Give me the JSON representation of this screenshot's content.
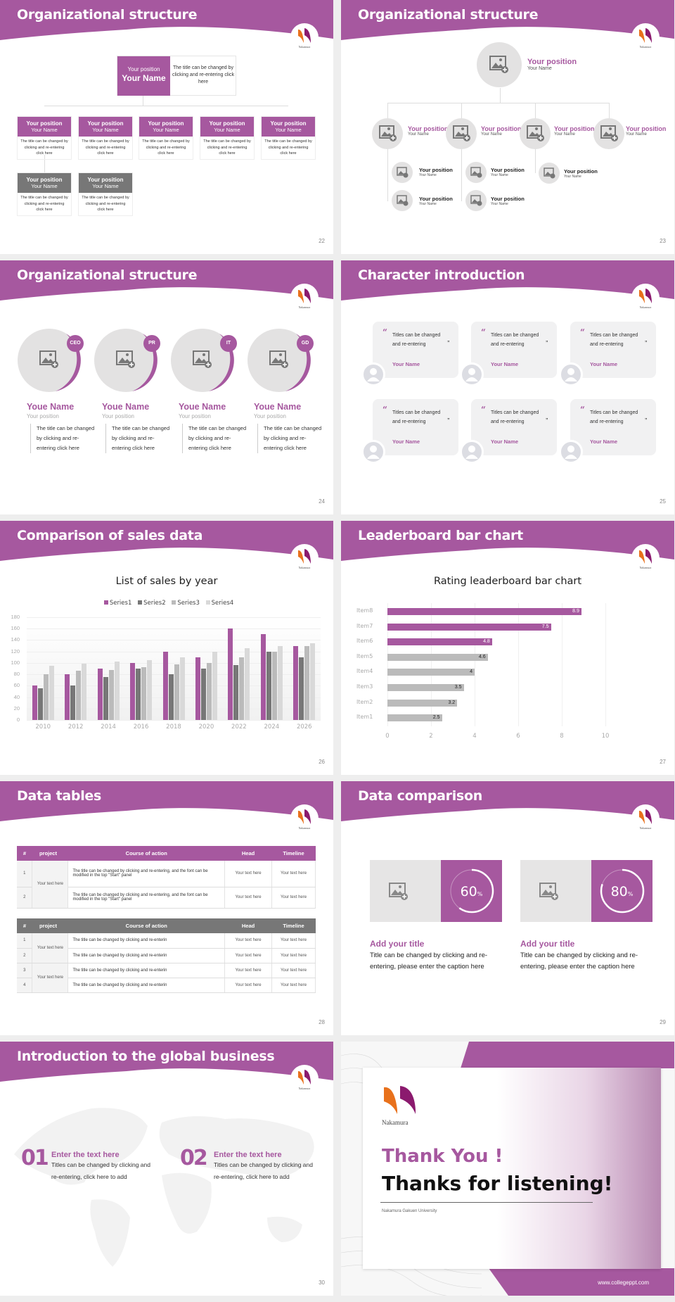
{
  "theme": {
    "accent": "#a6589f",
    "gray": "#777777",
    "light_gray": "#e3e2e2",
    "logo_orange": "#e8711c",
    "logo_purple": "#8b1a6e"
  },
  "logo": {
    "text": "Nakamura"
  },
  "slides": {
    "s22": {
      "title": "Organizational structure",
      "page": "22",
      "top": {
        "position": "Your position",
        "name": "Your Name",
        "desc": "The title can be changed by clicking and re-entering click here"
      },
      "boxes": [
        {
          "position": "Your position",
          "name": "Your Name",
          "desc": "The title can be changed by clicking and re-entering click here"
        },
        {
          "position": "Your position",
          "name": "Your Name",
          "desc": "The title can be changed by clicking and re-entering click here"
        },
        {
          "position": "Your position",
          "name": "Your Name",
          "desc": "The title can be changed by clicking and re-entering click here"
        },
        {
          "position": "Your position",
          "name": "Your Name",
          "desc": "The title can be changed by clicking and re-entering click here"
        },
        {
          "position": "Your position",
          "name": "Your Name",
          "desc": "The title can be changed by clicking and re-entering click here"
        },
        {
          "position": "Your position",
          "name": "Your Name",
          "desc": "The title can be changed by clicking and re-entering click here"
        },
        {
          "position": "Your position",
          "name": "Your Name",
          "desc": "The title can be changed by clicking and re-entering click here"
        }
      ]
    },
    "s23": {
      "title": "Organizational structure",
      "page": "23",
      "top": {
        "position": "Your position",
        "name": "Your Name"
      },
      "level2": [
        {
          "position": "Your position",
          "name": "Your Name"
        },
        {
          "position": "Your position",
          "name": "Your Name"
        },
        {
          "position": "Your position",
          "name": "Your Name"
        },
        {
          "position": "Your position",
          "name": "Your Name"
        }
      ],
      "level3": [
        {
          "position": "Your position",
          "name": "Your Name"
        },
        {
          "position": "Your position",
          "name": "Your Name"
        },
        {
          "position": "Your position",
          "name": "Your Name"
        },
        {
          "position": "Your position",
          "name": "Your Name"
        },
        {
          "position": "Your position",
          "name": "Your Name"
        }
      ]
    },
    "s24": {
      "title": "Organizational structure",
      "page": "24",
      "members": [
        {
          "badge": "CEO",
          "name": "Youe Name",
          "position": "Your position",
          "desc": "The title can be changed by clicking and re-entering click here"
        },
        {
          "badge": "PR",
          "name": "Youe Name",
          "position": "Your position",
          "desc": "The title can be changed by clicking and re-entering click here"
        },
        {
          "badge": "IT",
          "name": "Youe Name",
          "position": "Your position",
          "desc": "The title can be changed by clicking and re-entering click here"
        },
        {
          "badge": "GD",
          "name": "Youe Name",
          "position": "Your position",
          "desc": "The title can be changed by clicking and re-entering click here"
        }
      ]
    },
    "s25": {
      "title": "Character introduction",
      "page": "25",
      "cards": [
        {
          "text": "Titles can be changed and re-entering",
          "name": "Your Name"
        },
        {
          "text": "Titles can be changed and re-entering",
          "name": "Your Name"
        },
        {
          "text": "Titles can be changed and re-entering",
          "name": "Your Name"
        },
        {
          "text": "Titles can be changed and re-entering",
          "name": "Your Name"
        },
        {
          "text": "Titles can be changed and re-entering",
          "name": "Your Name"
        },
        {
          "text": "Titles can be changed and re-entering",
          "name": "Your Name"
        }
      ]
    },
    "s26": {
      "title": "Comparison of sales data",
      "page": "26"
    },
    "s27": {
      "title": "Leaderboard bar chart",
      "page": "27"
    },
    "s28": {
      "title": "Data tables",
      "page": "28",
      "headers": [
        "#",
        "project",
        "Course of action",
        "Head",
        "Timeline"
      ],
      "table1": {
        "project": "Your text here",
        "rows": [
          {
            "num": "1",
            "action": "The title can be changed by clicking and re-entering, and the font can be modified in the top \"Start\" panel",
            "head": "Your text here",
            "timeline": "Your text here"
          },
          {
            "num": "2",
            "action": "The title can be changed by clicking and re-entering, and the font can be modified in the top \"Start\" panel",
            "head": "Your text here",
            "timeline": "Your text here"
          }
        ]
      },
      "table2": {
        "projects": [
          "Your text here",
          "Your text here"
        ],
        "rows": [
          {
            "num": "1",
            "action": "The title can be changed by clicking and re-enterin",
            "head": "Your text here",
            "timeline": "Your text here"
          },
          {
            "num": "2",
            "action": "The title can be changed by clicking and re-enterin",
            "head": "Your text here",
            "timeline": "Your text here"
          },
          {
            "num": "3",
            "action": "The title can be changed by clicking and re-enterin",
            "head": "Your text here",
            "timeline": "Your text here"
          },
          {
            "num": "4",
            "action": "The title can be changed by clicking and re-enterin",
            "head": "Your text here",
            "timeline": "Your text here"
          }
        ]
      }
    },
    "s29": {
      "title": "Data comparison",
      "page": "29",
      "items": [
        {
          "percent": "60",
          "unit": "%",
          "title": "Add your title",
          "desc": "Title can be changed by clicking and re-entering, please enter the caption here"
        },
        {
          "percent": "80",
          "unit": "%",
          "title": "Add your title",
          "desc": "Title can be changed by clicking and re-entering, please enter the caption here"
        }
      ]
    },
    "s30": {
      "title": "Introduction to the global business",
      "page": "30",
      "items": [
        {
          "num": "01",
          "title": "Enter the text here",
          "desc": "Titles can be changed by clicking and re-entering, click here to add"
        },
        {
          "num": "02",
          "title": "Enter the text here",
          "desc": "Titles can be changed by clicking and re-entering, click here to add"
        }
      ]
    },
    "s31": {
      "line1": "Thank You !",
      "line2": "Thanks for listening!",
      "university": "Nakamura Gakuen University",
      "url": "www.collegeppt.com"
    }
  },
  "chart_data": [
    {
      "type": "bar",
      "title": "List of sales by year",
      "categories": [
        "2010",
        "2012",
        "2014",
        "2016",
        "2018",
        "2020",
        "2022",
        "2024",
        "2026"
      ],
      "series": [
        {
          "name": "Series1",
          "color": "#a6589f",
          "values": [
            60,
            80,
            90,
            100,
            120,
            110,
            160,
            150,
            130
          ]
        },
        {
          "name": "Series2",
          "color": "#777777",
          "values": [
            55,
            60,
            75,
            90,
            80,
            90,
            96,
            120,
            110
          ]
        },
        {
          "name": "Series3",
          "color": "#bbbbbb",
          "values": [
            80,
            86,
            88,
            92,
            98,
            100,
            110,
            120,
            130
          ]
        },
        {
          "name": "Series4",
          "color": "#d9d9d9",
          "values": [
            95,
            99,
            102,
            105,
            110,
            120,
            126,
            130,
            135
          ]
        }
      ],
      "yticks": [
        "0",
        "20",
        "40",
        "60",
        "80",
        "100",
        "120",
        "140",
        "160",
        "180"
      ],
      "xlabel": "",
      "ylabel": "",
      "ylim": [
        0,
        180
      ],
      "legend_position": "top",
      "grid": true
    },
    {
      "type": "bar",
      "orientation": "horizontal",
      "title": "Rating leaderboard bar chart",
      "categories": [
        "Item8",
        "Item7",
        "Item6",
        "Item5",
        "Item4",
        "Item3",
        "Item2",
        "Item1"
      ],
      "values": [
        8.9,
        7.5,
        4.8,
        4.6,
        4,
        3.5,
        3.2,
        2.5
      ],
      "labels": [
        "8.9",
        "7.5",
        "4.8",
        "4.6",
        "4",
        "3.5",
        "3.2",
        "2.5"
      ],
      "colors": [
        "#a6589f",
        "#a6589f",
        "#a6589f",
        "#bbbbbb",
        "#bbbbbb",
        "#bbbbbb",
        "#bbbbbb",
        "#bbbbbb"
      ],
      "xticks": [
        "0",
        "2",
        "4",
        "6",
        "8",
        "10"
      ],
      "xlim": [
        0,
        10
      ],
      "grid": true
    }
  ]
}
